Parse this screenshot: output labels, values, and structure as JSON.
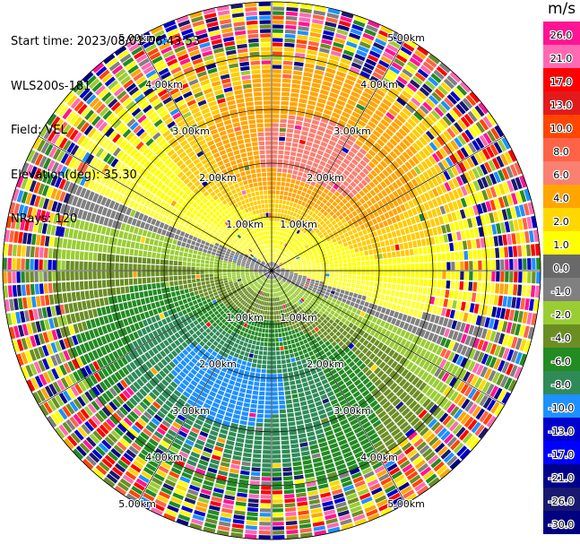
{
  "header": {
    "start_time": "Start time: 2023/08/01 06:43:53",
    "instrument": "WLS200s-181",
    "field": "Field: VEL",
    "elevation": "Elevation(deg): 35.30",
    "nrays": "NRays: 120"
  },
  "colorbar": {
    "unit": "m/s",
    "ticks": [
      "26.0",
      "21.0",
      "17.0",
      "13.0",
      "10.0",
      "8.0",
      "6.0",
      "4.0",
      "2.0",
      "1.0",
      "0.0",
      "-1.0",
      "-2.0",
      "-4.0",
      "-6.0",
      "-8.0",
      "-10.0",
      "-13.0",
      "-17.0",
      "-21.0",
      "-26.0",
      "-30.0"
    ],
    "colors": [
      "#ff1493",
      "#ff69b4",
      "#ff0000",
      "#e31a1c",
      "#ff4500",
      "#ff6347",
      "#fa8072",
      "#ffa500",
      "#ffd700",
      "#ffff00",
      "#696969",
      "#808080",
      "#9acd32",
      "#6b8e23",
      "#228b22",
      "#2e8b57",
      "#1e90ff",
      "#0000cd",
      "#0000ff",
      "#00008b",
      "#191970",
      "#000080"
    ]
  },
  "range_labels": [
    "1.00km",
    "2.00km",
    "3.00km",
    "4.00km",
    "5.00km"
  ],
  "num_rays": 120
}
